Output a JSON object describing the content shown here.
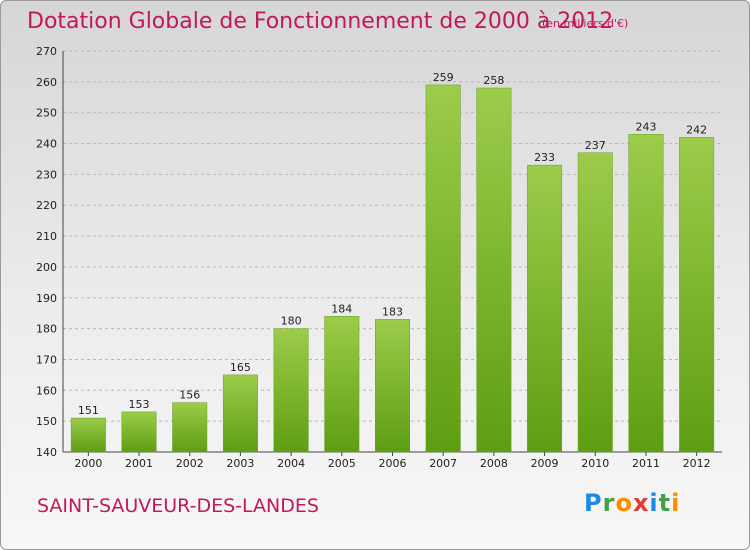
{
  "title": "Dotation Globale de Fonctionnement de 2000 à 2012",
  "unit_note": "(en milliers d'€)",
  "city": "SAINT-SAUVEUR-DES-LANDES",
  "logo": {
    "letters": [
      "P",
      "r",
      "o",
      "x",
      "i",
      "t",
      "i"
    ],
    "colors": [
      "#1e88e5",
      "#43a047",
      "#fb8c00",
      "#e53935",
      "#1e88e5",
      "#43a047",
      "#fb8c00"
    ]
  },
  "colors": {
    "title": "#c2185b",
    "bar_top": "#9ccc4a",
    "bar_bottom": "#5e9e12",
    "grid": "#b8b8b8"
  },
  "chart_data": {
    "type": "bar",
    "title": "Dotation Globale de Fonctionnement de 2000 à 2012",
    "categories": [
      "2000",
      "2001",
      "2002",
      "2003",
      "2004",
      "2005",
      "2006",
      "2007",
      "2008",
      "2009",
      "2010",
      "2011",
      "2012"
    ],
    "values": [
      151,
      153,
      156,
      165,
      180,
      184,
      183,
      259,
      258,
      233,
      237,
      243,
      242
    ],
    "ylim": [
      140,
      270
    ],
    "yticks": [
      140,
      150,
      160,
      170,
      180,
      190,
      200,
      210,
      220,
      230,
      240,
      250,
      260,
      270
    ],
    "grid": true
  }
}
